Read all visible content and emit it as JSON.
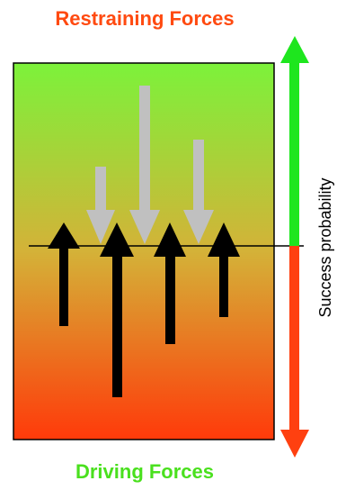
{
  "titles": {
    "restraining": "Restraining Forces",
    "driving": "Driving Forces"
  },
  "axis": {
    "label": "Success probability"
  },
  "colors": {
    "restraining_title": "#ff4a10",
    "driving_title": "#4ae01e",
    "gradient_top": "#7cf23a",
    "gradient_mid": "#d4b238",
    "gradient_bottom": "#ff3a0a",
    "axis_up": "#1ee61e",
    "axis_down": "#ff4010",
    "restraining_arrow": "#c0c0c0",
    "driving_arrow": "#000000",
    "outline": "#000000"
  },
  "forces": {
    "restraining_count": 3,
    "driving_count": 4
  }
}
